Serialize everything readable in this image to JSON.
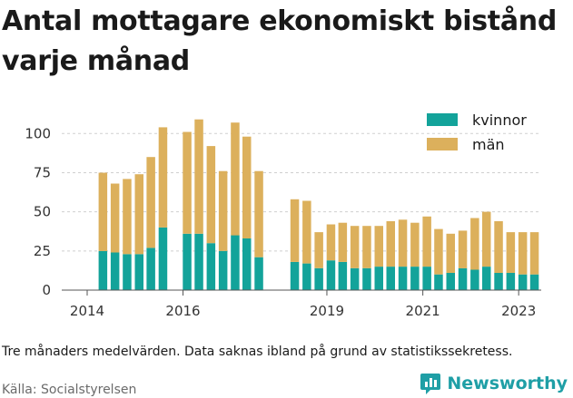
{
  "title": "Antal mottagare ekonomiskt bistånd varje månad",
  "note": "Tre månaders medelvärden. Data saknas ibland på grund av statistikssekretess.",
  "source": "Källa: Socialstyrelsen",
  "brand": {
    "name": "Newsworthy",
    "icon": "bar-chart-logo-icon",
    "color": "#1f9fa6"
  },
  "colors": {
    "kvinnor": "#13a39a",
    "man": "#dcb05c",
    "grid": "#cfcfcf",
    "axis": "#555555"
  },
  "chart_data": {
    "type": "bar",
    "stacked": true,
    "title": "Antal mottagare ekonomiskt bistånd varje månad",
    "xlabel": "",
    "ylabel": "",
    "ylim": [
      0,
      110
    ],
    "yticks": [
      0,
      25,
      50,
      75,
      100
    ],
    "xticks": [
      "2014",
      "2016",
      "2019",
      "2021",
      "2023"
    ],
    "legend_position": "top-right",
    "grid": true,
    "x": [
      "2014-05",
      "2014-08",
      "2014-11",
      "2015-02",
      "2015-05",
      "2015-08",
      "2016-02",
      "2016-05",
      "2016-08",
      "2016-11",
      "2017-02",
      "2017-05",
      "2017-08",
      "2018-05",
      "2018-08",
      "2018-11",
      "2019-02",
      "2019-05",
      "2019-08",
      "2019-11",
      "2020-02",
      "2020-05",
      "2020-08",
      "2020-11",
      "2021-02",
      "2021-05",
      "2021-08",
      "2021-11",
      "2022-02",
      "2022-05",
      "2022-08",
      "2022-11",
      "2023-02",
      "2023-05"
    ],
    "series": [
      {
        "name": "kvinnor",
        "values": [
          25,
          24,
          23,
          23,
          27,
          40,
          36,
          36,
          30,
          25,
          35,
          33,
          21,
          18,
          17,
          14,
          19,
          18,
          14,
          14,
          15,
          15,
          15,
          15,
          15,
          10,
          11,
          14,
          13,
          15,
          11,
          11,
          10,
          10
        ]
      },
      {
        "name": "män",
        "values": [
          50,
          44,
          48,
          51,
          58,
          64,
          65,
          73,
          62,
          51,
          72,
          65,
          55,
          40,
          40,
          23,
          23,
          25,
          27,
          27,
          26,
          29,
          30,
          28,
          32,
          29,
          25,
          24,
          33,
          35,
          33,
          26,
          27,
          27
        ]
      }
    ]
  }
}
